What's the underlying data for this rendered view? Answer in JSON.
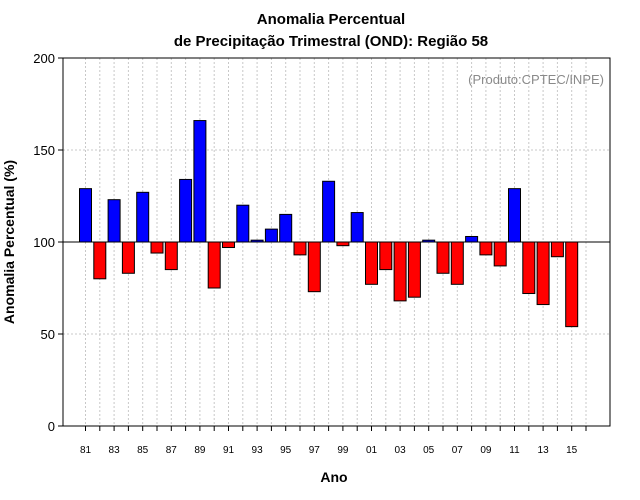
{
  "chart_data": {
    "type": "bar",
    "title": "Anomalia Percentual",
    "subtitle": "de Precipitação Trimestral (OND): Região 58",
    "xlabel": "Ano",
    "ylabel": "Anomalia Percentual (%)",
    "source_note": "(Produto:CPTEC/INPE)",
    "ylim": [
      0,
      200
    ],
    "yticks": [
      0,
      50,
      100,
      150,
      200
    ],
    "baseline": 100,
    "grid": true,
    "colors": {
      "above": "#0000ff",
      "below": "#ff0000"
    },
    "categories": [
      "81",
      "82",
      "83",
      "84",
      "85",
      "86",
      "87",
      "88",
      "89",
      "90",
      "91",
      "92",
      "93",
      "94",
      "95",
      "96",
      "97",
      "98",
      "99",
      "00",
      "01",
      "02",
      "03",
      "04",
      "05",
      "06",
      "07",
      "08",
      "09",
      "10",
      "11",
      "12",
      "13",
      "14",
      "15",
      "16"
    ],
    "xtick_labels": [
      "81",
      "",
      "83",
      "",
      "85",
      "",
      "87",
      "",
      "89",
      "",
      "91",
      "",
      "93",
      "",
      "95",
      "",
      "97",
      "",
      "99",
      "",
      "01",
      "",
      "03",
      "",
      "05",
      "",
      "07",
      "",
      "09",
      "",
      "11",
      "",
      "13",
      "",
      "15",
      ""
    ],
    "values": [
      129,
      80,
      123,
      83,
      127,
      94,
      85,
      134,
      166,
      75,
      97,
      120,
      101,
      107,
      115,
      93,
      73,
      133,
      98,
      116,
      77,
      85,
      68,
      70,
      101,
      83,
      77,
      103,
      93,
      87,
      129,
      72,
      66,
      92,
      54,
      null
    ]
  }
}
